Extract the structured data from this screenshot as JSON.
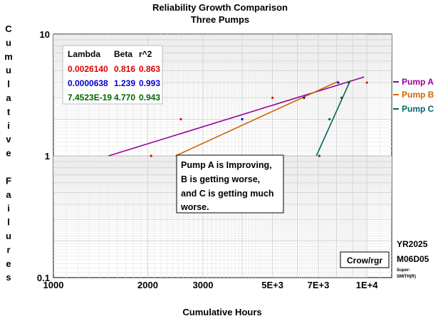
{
  "chart_data": {
    "type": "line",
    "title": "Reliability Growth Comparison",
    "subtitle": "Three Pumps",
    "xlabel": "Cumulative Hours",
    "ylabel": "Cumulative Failures",
    "xscale": "log",
    "yscale": "log",
    "xlim": [
      1000,
      12000
    ],
    "ylim": [
      0.1,
      10
    ],
    "x_ticks": [
      {
        "value": 1000,
        "label": "1000"
      },
      {
        "value": 2000,
        "label": "2000"
      },
      {
        "value": 3000,
        "label": "3000"
      },
      {
        "value": 5000,
        "label": "5E+3"
      },
      {
        "value": 7000,
        "label": "7E+3"
      },
      {
        "value": 10000,
        "label": "1E+4"
      }
    ],
    "y_ticks": [
      {
        "value": 10,
        "label": "10"
      },
      {
        "value": 1,
        "label": "1"
      },
      {
        "value": 0.1,
        "label": "0.1"
      }
    ],
    "grid": true,
    "legend_position": "right",
    "series": [
      {
        "name": "Pump A",
        "color": "#990099",
        "line": [
          [
            1500,
            1.0
          ],
          [
            9800,
            4.45
          ]
        ],
        "points": [
          [
            2050,
            1.0
          ],
          [
            2550,
            2.0
          ],
          [
            5000,
            3.0
          ],
          [
            6300,
            3.0
          ],
          [
            10000,
            4.0
          ]
        ]
      },
      {
        "name": "Pump B",
        "color": "#cc6600",
        "line": [
          [
            2450,
            1.0
          ],
          [
            8100,
            4.1
          ]
        ],
        "points": [
          [
            2550,
            1.0
          ],
          [
            4000,
            2.0
          ],
          [
            6300,
            3.0
          ],
          [
            8100,
            4.0
          ]
        ]
      },
      {
        "name": "Pump C",
        "color": "#006666",
        "line": [
          [
            6900,
            1.0
          ],
          [
            8850,
            4.15
          ]
        ],
        "points": [
          [
            7050,
            1.0
          ],
          [
            7600,
            2.0
          ],
          [
            8300,
            3.0
          ],
          [
            8750,
            4.0
          ]
        ]
      }
    ],
    "parameter_table": {
      "headers": [
        "Lambda",
        "Beta",
        "r^2"
      ],
      "rows": [
        {
          "lambda": "0.0026140",
          "beta": "0.816",
          "r2": "0.863",
          "color": "#e00000"
        },
        {
          "lambda": "0.0000638",
          "beta": "1.239",
          "r2": "0.993",
          "color": "#0000cc"
        },
        {
          "lambda": "7.4523E-19",
          "beta": "4.770",
          "r2": "0.943",
          "color": "#006600"
        }
      ]
    },
    "annotation_lines": [
      "Pump A is Improving,",
      "B is getting worse,",
      "and C is getting much",
      "worse."
    ],
    "method_label": "Crow/rgr",
    "date_lines": [
      "YR2025",
      "M06D05"
    ],
    "software_lines": [
      "Super-",
      "SMITH(R)"
    ]
  }
}
